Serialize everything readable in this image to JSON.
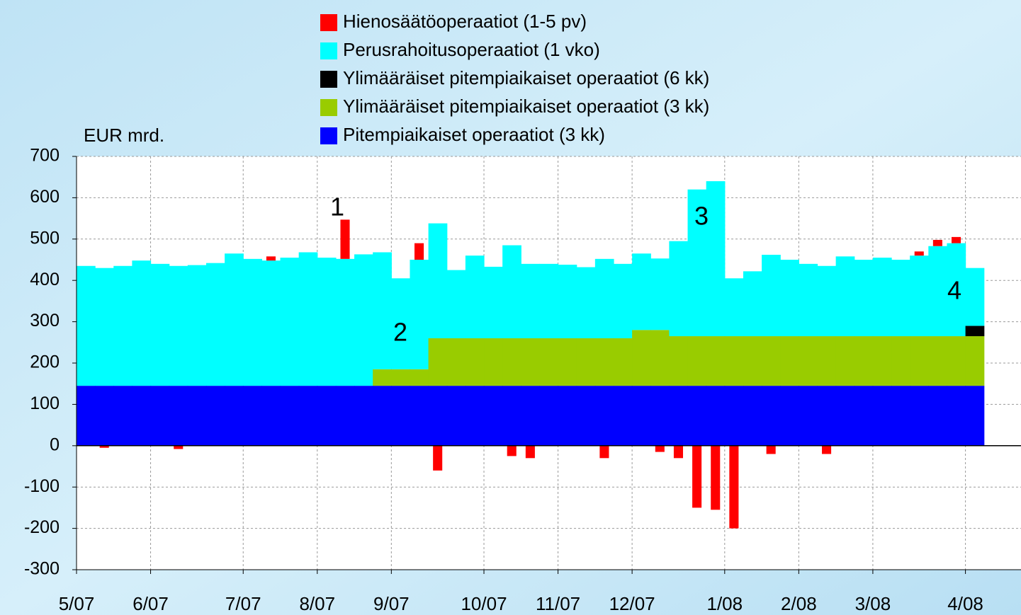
{
  "chart_data": {
    "type": "stacked-step-bar",
    "y_label": "EUR mrd.",
    "categories": [
      "5/07",
      null,
      null,
      null,
      "6/07",
      null,
      null,
      null,
      null,
      "7/07",
      null,
      null,
      null,
      "8/07",
      null,
      null,
      null,
      "9/07",
      null,
      null,
      null,
      null,
      "10/07",
      null,
      null,
      null,
      "11/07",
      null,
      null,
      null,
      "12/07",
      null,
      null,
      null,
      null,
      "1/08",
      null,
      null,
      null,
      "2/08",
      null,
      null,
      null,
      "3/08",
      null,
      null,
      null,
      null,
      "4/08",
      null,
      null
    ],
    "series": [
      {
        "name": "Hienosäätöoperaatiot (1-5 pv)",
        "color": "#ff0000",
        "values": [
          null,
          -5,
          null,
          null,
          null,
          -8,
          null,
          null,
          null,
          null,
          10,
          null,
          null,
          null,
          95,
          null,
          null,
          null,
          40,
          -60,
          null,
          null,
          null,
          -25,
          -30,
          null,
          null,
          null,
          -30,
          null,
          null,
          -15,
          -30,
          -150,
          -155,
          -200,
          null,
          -20,
          null,
          null,
          -20,
          null,
          null,
          null,
          null,
          10,
          15,
          15,
          null,
          null,
          null
        ]
      },
      {
        "name": "Perusrahoitusoperaatiot (1 vko)",
        "color": "#00ffff",
        "values": [
          290,
          285,
          290,
          303,
          295,
          290,
          292,
          297,
          320,
          307,
          303,
          310,
          323,
          310,
          307,
          318,
          283,
          220,
          265,
          278,
          165,
          200,
          173,
          225,
          180,
          180,
          178,
          172,
          192,
          180,
          185,
          173,
          230,
          355,
          375,
          140,
          157,
          197,
          185,
          175,
          170,
          193,
          185,
          190,
          185,
          195,
          218,
          225,
          140,
          null,
          null
        ]
      },
      {
        "name": "Ylimääräiset pitempiaikaiset operaatiot (6 kk)",
        "color": "#000000",
        "values": [
          null,
          null,
          null,
          null,
          null,
          null,
          null,
          null,
          null,
          null,
          null,
          null,
          null,
          null,
          null,
          null,
          null,
          null,
          null,
          null,
          null,
          null,
          null,
          null,
          null,
          null,
          null,
          null,
          null,
          null,
          null,
          null,
          null,
          null,
          null,
          null,
          null,
          null,
          null,
          null,
          null,
          null,
          null,
          null,
          null,
          null,
          null,
          null,
          25,
          null,
          null
        ]
      },
      {
        "name": "Ylimääräiset pitempiaikaiset operaatiot (3 kk)",
        "color": "#99cc00",
        "values": [
          null,
          null,
          null,
          null,
          null,
          null,
          null,
          null,
          null,
          null,
          null,
          null,
          null,
          null,
          null,
          null,
          40,
          40,
          40,
          115,
          115,
          115,
          115,
          115,
          115,
          115,
          115,
          115,
          115,
          115,
          135,
          135,
          120,
          120,
          120,
          120,
          120,
          120,
          120,
          120,
          120,
          120,
          120,
          120,
          120,
          120,
          120,
          120,
          120,
          null,
          null
        ]
      },
      {
        "name": "Pitempiaikaiset operaatiot (3 kk)",
        "color": "#0000ff",
        "values": [
          145,
          145,
          145,
          145,
          145,
          145,
          145,
          145,
          145,
          145,
          145,
          145,
          145,
          145,
          145,
          145,
          145,
          145,
          145,
          145,
          145,
          145,
          145,
          145,
          145,
          145,
          145,
          145,
          145,
          145,
          145,
          145,
          145,
          145,
          145,
          145,
          145,
          145,
          145,
          145,
          145,
          145,
          145,
          145,
          145,
          145,
          145,
          145,
          145,
          null,
          null
        ]
      }
    ],
    "annotations": [
      "1",
      "2",
      "3",
      "4"
    ],
    "ylim": [
      -300,
      700
    ],
    "yticks": [
      -300,
      -200,
      -100,
      0,
      100,
      200,
      300,
      400,
      500,
      600,
      700
    ],
    "grid": true
  }
}
